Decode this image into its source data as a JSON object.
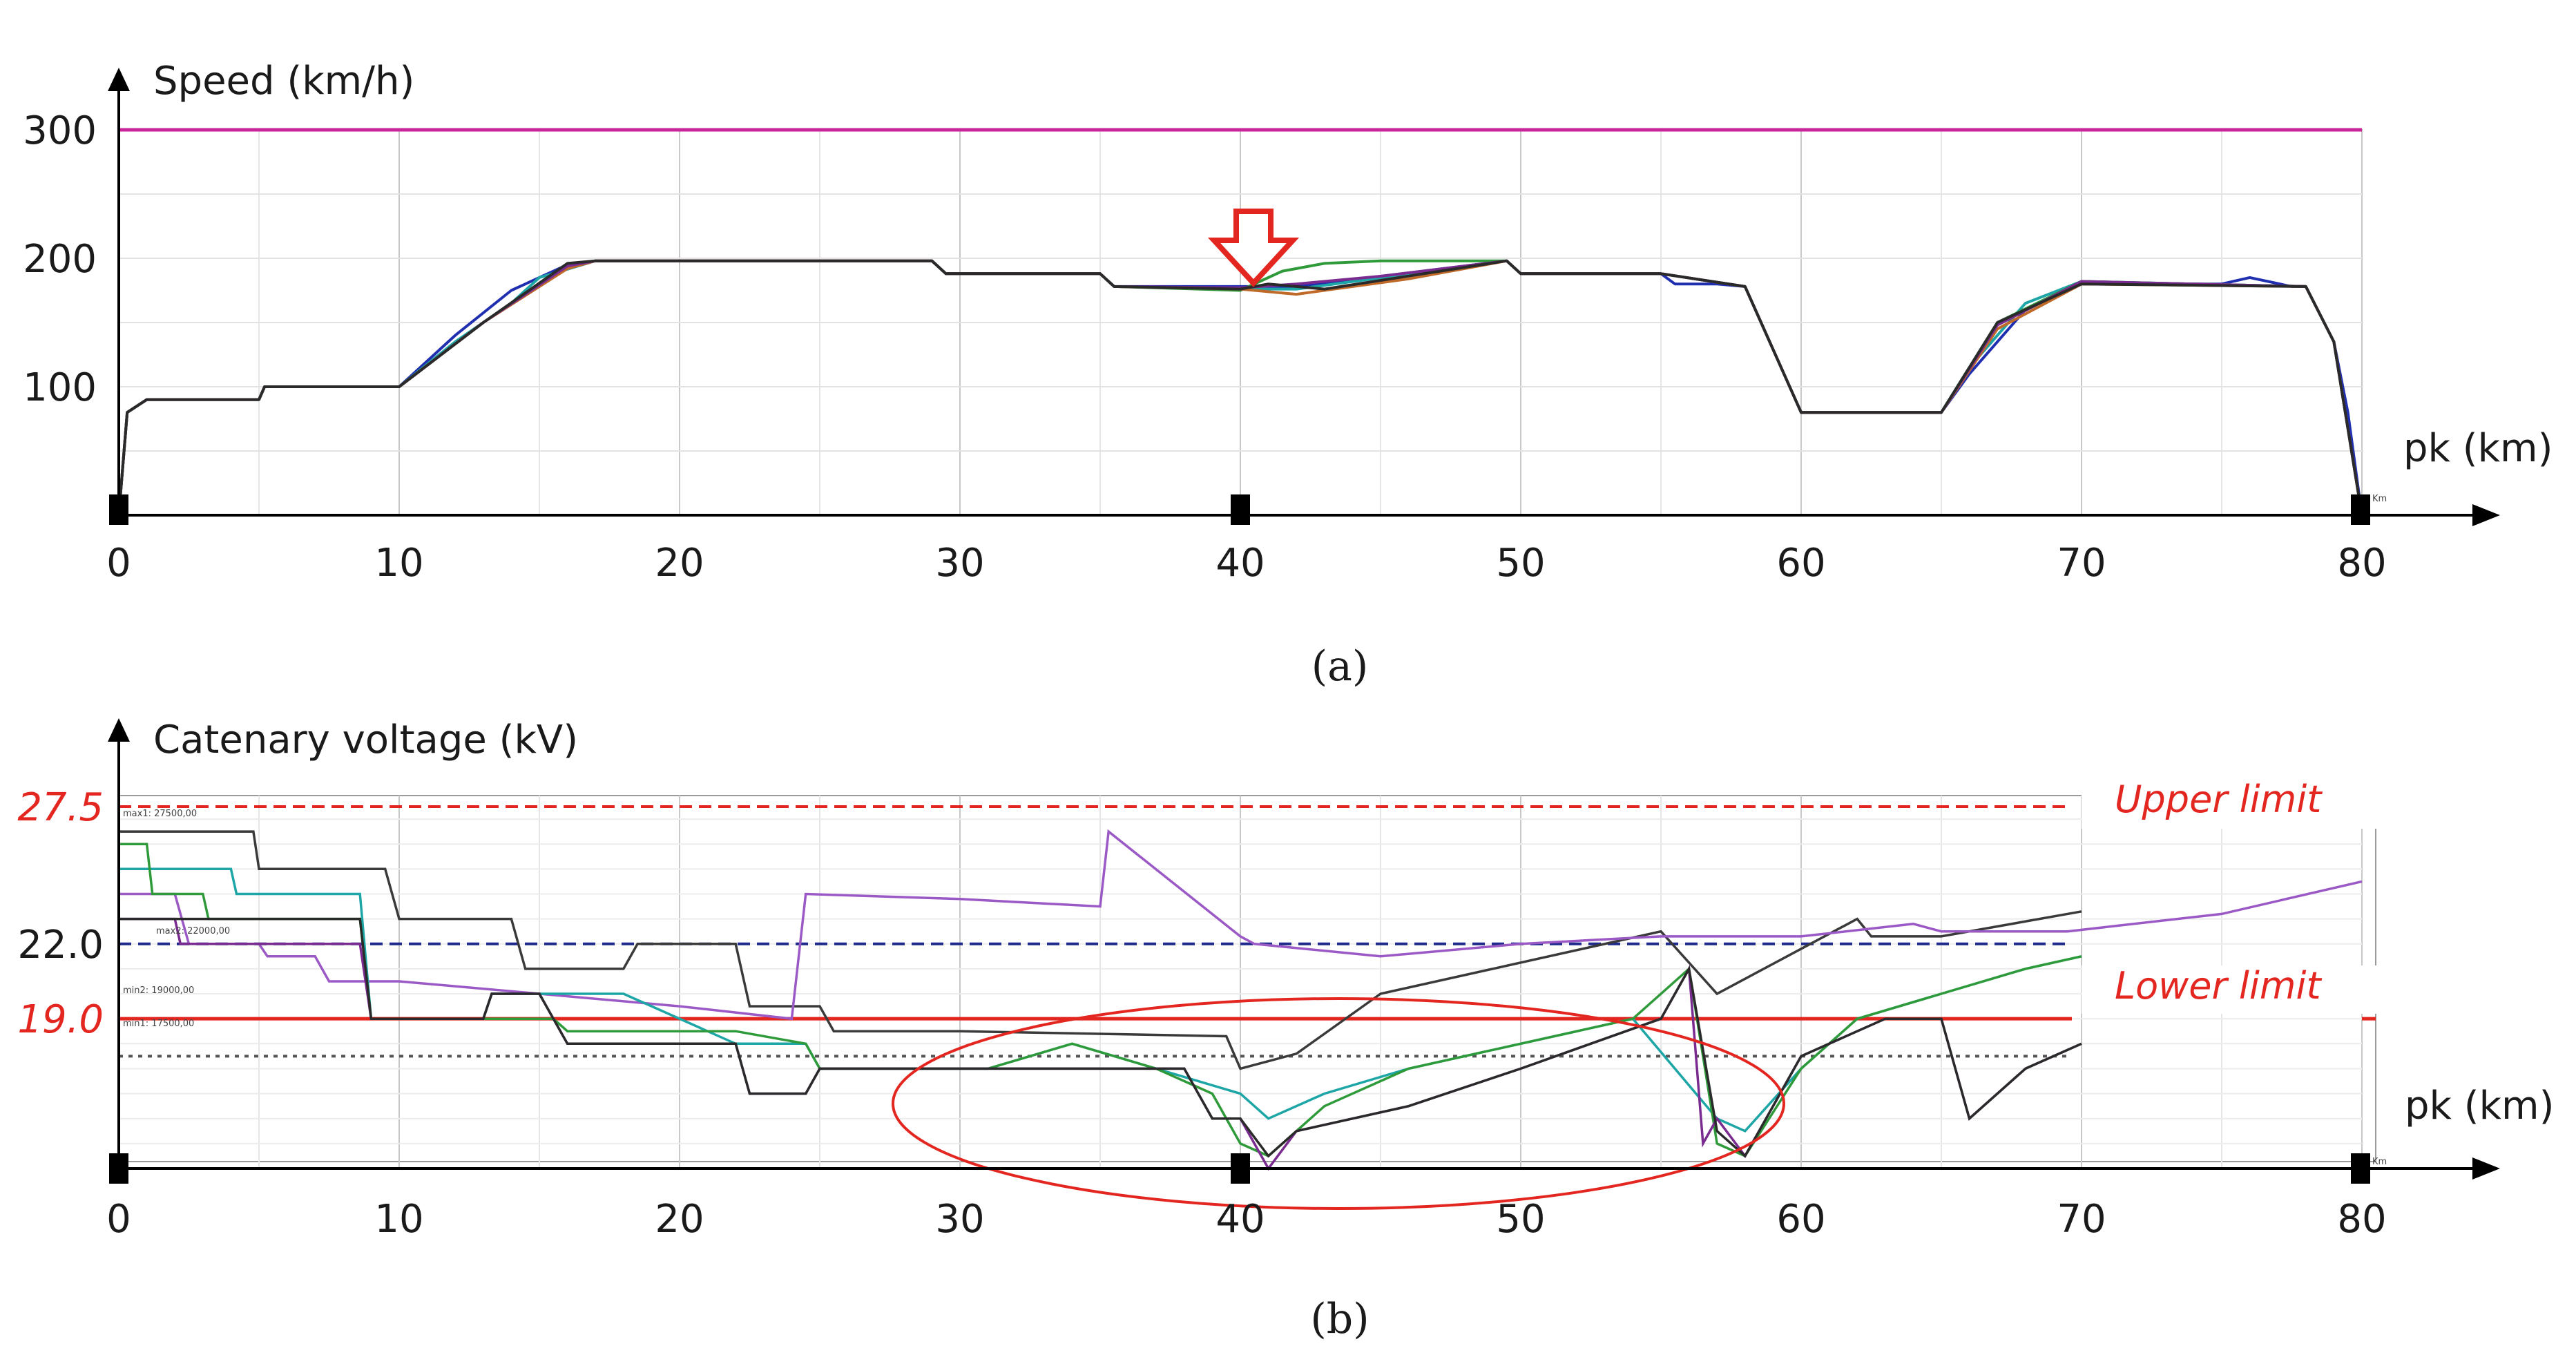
{
  "chart_data": [
    {
      "type": "line",
      "panel_label": "(a)",
      "ylabel": "Speed (km/h)",
      "xlabel": "pk (km)",
      "x_axis_unit_tag": "Km",
      "xlim": [
        0,
        80
      ],
      "ylim": [
        0,
        300
      ],
      "x_ticks": [
        "0",
        "10",
        "20",
        "30",
        "40",
        "50",
        "60",
        "70",
        "80"
      ],
      "y_ticks": [
        "100",
        "200",
        "300"
      ],
      "grid": true,
      "annotation": "down-arrow at pk 40",
      "limit_line": {
        "y": 300,
        "color": "#c9259a"
      },
      "series": [
        {
          "color": "#1f2fb0",
          "x": [
            0,
            0.3,
            1,
            3,
            5,
            5.2,
            9,
            10,
            12,
            14,
            16,
            17,
            29,
            29.5,
            35,
            35.5,
            40,
            42,
            49.5,
            50,
            55,
            55.5,
            57,
            58,
            60,
            65,
            66,
            68,
            70,
            75,
            76,
            77.5,
            78,
            79,
            79.5,
            80
          ],
          "y": [
            0,
            80,
            90,
            90,
            90,
            100,
            100,
            100,
            140,
            175,
            195,
            198,
            198,
            188,
            188,
            178,
            178,
            178,
            198,
            188,
            188,
            180,
            180,
            178,
            80,
            80,
            110,
            160,
            180,
            180,
            185,
            178,
            178,
            135,
            80,
            0
          ]
        },
        {
          "color": "#1ea6a6",
          "x": [
            0,
            0.3,
            1,
            5,
            5.2,
            10,
            12,
            14,
            15,
            17,
            29,
            29.5,
            35,
            35.5,
            40,
            42,
            49.5,
            50,
            55,
            58,
            60,
            65,
            66,
            68,
            70,
            78,
            79,
            80
          ],
          "y": [
            0,
            80,
            90,
            90,
            100,
            100,
            135,
            165,
            185,
            198,
            198,
            188,
            188,
            178,
            176,
            176,
            198,
            188,
            188,
            178,
            80,
            80,
            115,
            165,
            182,
            178,
            135,
            0
          ]
        },
        {
          "color": "#2f9a3a",
          "x": [
            0,
            0.3,
            1,
            5,
            5.2,
            10,
            13,
            16,
            17,
            29,
            29.5,
            35,
            35.5,
            40,
            41.5,
            43,
            45,
            49.5,
            50,
            55,
            58,
            60,
            65,
            67,
            70,
            78,
            79,
            80
          ],
          "y": [
            0,
            80,
            90,
            90,
            100,
            100,
            150,
            195,
            198,
            198,
            188,
            188,
            178,
            175,
            190,
            196,
            198,
            198,
            188,
            188,
            178,
            80,
            80,
            150,
            182,
            178,
            135,
            0
          ]
        },
        {
          "color": "#c06a2a",
          "x": [
            0,
            0.3,
            1,
            5,
            5.2,
            10,
            13,
            16,
            17,
            29,
            29.5,
            35,
            35.5,
            40,
            42,
            46,
            49.5,
            50,
            55,
            58,
            60,
            65,
            67,
            70,
            78,
            79,
            80
          ],
          "y": [
            0,
            80,
            90,
            90,
            100,
            100,
            150,
            192,
            198,
            198,
            188,
            188,
            178,
            176,
            172,
            184,
            198,
            188,
            188,
            178,
            80,
            80,
            145,
            180,
            178,
            135,
            0
          ]
        },
        {
          "color": "#7a2b8f",
          "x": [
            0,
            0.3,
            1,
            5,
            5.2,
            10,
            13,
            16,
            17,
            29,
            29.5,
            35,
            35.5,
            40,
            42,
            45,
            49.5,
            50,
            55,
            58,
            60,
            65,
            67,
            70,
            78,
            79,
            80
          ],
          "y": [
            0,
            80,
            90,
            90,
            100,
            100,
            150,
            194,
            198,
            198,
            188,
            188,
            178,
            177,
            180,
            186,
            198,
            188,
            188,
            178,
            80,
            80,
            148,
            182,
            178,
            135,
            0
          ]
        },
        {
          "color": "#2a2a2a",
          "x": [
            0,
            0.3,
            1,
            5,
            5.2,
            10,
            13,
            16,
            17,
            29,
            29.5,
            35,
            35.5,
            40,
            41,
            43,
            49.5,
            50,
            55,
            58,
            60,
            65,
            67,
            70,
            78,
            79,
            80
          ],
          "y": [
            0,
            80,
            90,
            90,
            100,
            100,
            150,
            196,
            198,
            198,
            188,
            188,
            178,
            176,
            180,
            176,
            198,
            188,
            188,
            178,
            80,
            80,
            150,
            180,
            178,
            135,
            0
          ]
        }
      ]
    },
    {
      "type": "line",
      "panel_label": "(b)",
      "ylabel": "Catenary voltage (kV)",
      "xlabel": "pk (km)",
      "x_axis_unit_tag": "Km",
      "xlim": [
        0,
        80
      ],
      "ylim": [
        13,
        27.5
      ],
      "x_ticks": [
        "0",
        "10",
        "20",
        "30",
        "40",
        "50",
        "60",
        "70",
        "80"
      ],
      "y_ticks": [
        "27.5",
        "22.0",
        "19.0"
      ],
      "y_tick_colors": [
        "#e3261f",
        "#1a1a1a",
        "#e3261f"
      ],
      "grid": true,
      "reference_lines": [
        {
          "label": "Upper limit",
          "y": 27.5,
          "color": "#e3261f",
          "style": "dashed"
        },
        {
          "label": "Lower limit",
          "y": 19.0,
          "color": "#e3261f",
          "style": "solid"
        },
        {
          "y": 22.0,
          "color": "#1f2a8a",
          "style": "dashed"
        },
        {
          "y": 17.5,
          "color": "#555555",
          "style": "dotted"
        }
      ],
      "small_labels": [
        "max1: 27500,00",
        "max2: 22000,00",
        "min2: 19000,00",
        "min1: 17500,00"
      ],
      "annotation": "ellipse around pk 28–64 low-voltage region",
      "series": [
        {
          "color": "#3a3a3a",
          "x": [
            0,
            4.8,
            5,
            9.5,
            10,
            14,
            14.5,
            18,
            18.5,
            22,
            22.5,
            25,
            25.5,
            30,
            39.5,
            40,
            42,
            45,
            49,
            55,
            57,
            62,
            62.5,
            65,
            70
          ],
          "y": [
            26.5,
            26.5,
            25,
            25,
            23,
            23,
            21,
            21,
            22,
            22,
            19.5,
            19.5,
            18.5,
            18.5,
            18.3,
            17,
            17.6,
            20,
            21,
            22.5,
            20,
            23,
            22.3,
            22.3,
            23.3
          ]
        },
        {
          "color": "#9b59c6",
          "x": [
            0,
            2,
            2.5,
            5,
            5.3,
            7,
            7.5,
            10,
            15,
            20,
            24,
            24.5,
            30,
            35,
            35.3,
            40,
            40.5,
            45,
            50,
            55,
            60,
            64,
            65,
            69.5,
            75,
            80
          ],
          "y": [
            24,
            24,
            22,
            22,
            21.5,
            21.5,
            20.5,
            20.5,
            20,
            19.5,
            19,
            24,
            23.8,
            23.5,
            26.5,
            22.3,
            22,
            21.5,
            22,
            22.3,
            22.3,
            22.8,
            22.5,
            22.5,
            23.2,
            24.5
          ]
        },
        {
          "color": "#1ea6a6",
          "x": [
            0,
            4,
            4.2,
            8.6,
            9,
            13,
            13.3,
            18,
            22,
            24.5,
            25,
            31,
            34,
            37,
            40,
            41,
            43,
            46,
            50,
            54,
            57,
            58,
            60,
            62,
            65,
            68,
            70
          ],
          "y": [
            25,
            25,
            24,
            24,
            19,
            19,
            20,
            20,
            18,
            18,
            17,
            17,
            18,
            17,
            16,
            15,
            16,
            17,
            18,
            19,
            15,
            14.5,
            17,
            19,
            20,
            21,
            21.5
          ]
        },
        {
          "color": "#2f9a3a",
          "x": [
            0,
            1,
            1.2,
            3,
            3.2,
            8.6,
            9,
            13,
            15.5,
            16,
            22,
            24.5,
            25,
            31,
            34,
            37,
            39,
            40,
            41,
            43,
            46,
            50,
            54,
            56,
            57,
            58,
            60,
            62,
            65,
            68,
            70
          ],
          "y": [
            26,
            26,
            24,
            24,
            23,
            23,
            19,
            19,
            19,
            18.5,
            18.5,
            18,
            17,
            17,
            18,
            17,
            16,
            14,
            13.5,
            15.5,
            17,
            18,
            19,
            21,
            14,
            13.5,
            17,
            19,
            20,
            21,
            21.5
          ]
        },
        {
          "color": "#7a2b8f",
          "x": [
            0,
            2,
            2.2,
            8.6,
            9,
            13,
            13.3,
            15,
            16,
            22,
            22.5,
            24.5,
            25,
            30,
            38,
            39,
            40,
            41,
            42,
            46,
            50,
            55,
            56,
            56.5,
            57,
            58,
            60,
            63,
            65,
            66,
            68,
            70
          ],
          "y": [
            23,
            23,
            22,
            22,
            19,
            19,
            20,
            20,
            18,
            18,
            16,
            16,
            17,
            17,
            17,
            15,
            15,
            13,
            14.5,
            15.5,
            17,
            19,
            21,
            14,
            15,
            13.5,
            17.5,
            19,
            19,
            15,
            17,
            18
          ]
        },
        {
          "color": "#2a2a2a",
          "x": [
            0,
            8.6,
            9,
            13,
            13.3,
            15,
            16,
            22,
            22.5,
            24.5,
            25,
            30,
            38,
            39,
            40,
            41,
            42,
            46,
            50,
            55,
            56,
            57,
            58,
            60,
            63,
            65,
            66,
            68,
            70
          ],
          "y": [
            23,
            23,
            19,
            19,
            20,
            20,
            18,
            18,
            16,
            16,
            17,
            17,
            17,
            15,
            15,
            13.5,
            14.5,
            15.5,
            17,
            19,
            21,
            14.5,
            13.5,
            17.5,
            19,
            19,
            15,
            17,
            18
          ]
        }
      ]
    }
  ],
  "captions": {
    "a": "(a)",
    "b": "(b)"
  }
}
